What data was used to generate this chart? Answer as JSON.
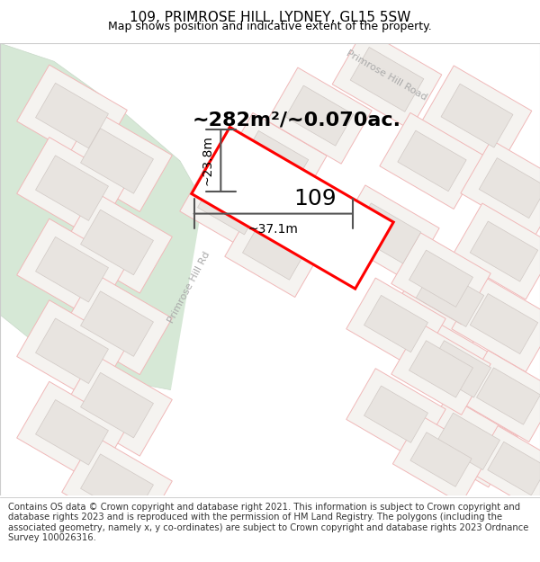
{
  "title": "109, PRIMROSE HILL, LYDNEY, GL15 5SW",
  "subtitle": "Map shows position and indicative extent of the property.",
  "footer": "Contains OS data © Crown copyright and database right 2021. This information is subject to Crown copyright and database rights 2023 and is reproduced with the permission of HM Land Registry. The polygons (including the associated geometry, namely x, y co-ordinates) are subject to Crown copyright and database rights 2023 Ordnance Survey 100026316.",
  "area_label": "~282m²/~0.070ac.",
  "property_number": "109",
  "width_label": "~37.1m",
  "height_label": "~23.8m",
  "map_bg": "#f7f5f2",
  "plot_outline_color": "#ff0000",
  "dim_line_color": "#555555",
  "green_color": "#d6e8d6",
  "building_fc": "#e8e4e0",
  "building_ec": "#d0c8c4",
  "plot_ec": "#f0b8b8",
  "road_label_color": "#aaaaaa",
  "title_fontsize": 11,
  "subtitle_fontsize": 9,
  "footer_fontsize": 7.2,
  "area_fontsize": 16,
  "number_fontsize": 18,
  "dim_fontsize": 10
}
